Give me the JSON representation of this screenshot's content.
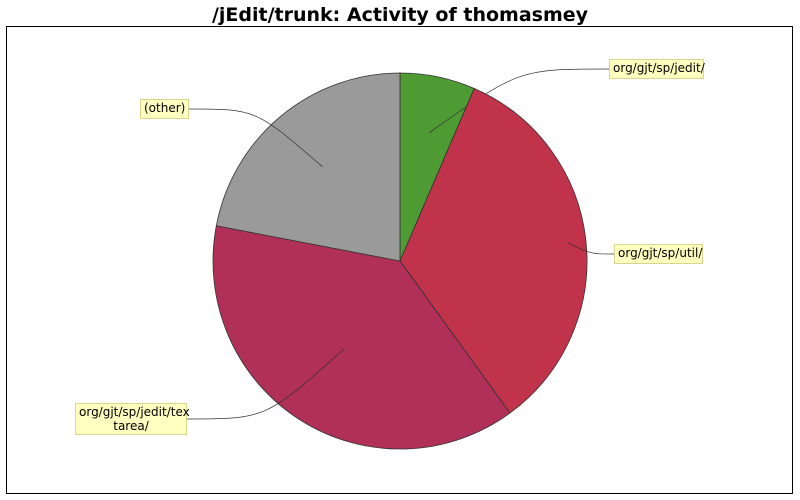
{
  "chart_data": {
    "type": "pie",
    "title": "/jEdit/trunk: Activity of thomasmey",
    "slices": [
      {
        "label": "org/gjt/sp/jedit/",
        "value": 6.5,
        "color": "#4e9a33"
      },
      {
        "label": "org/gjt/sp/util/",
        "value": 33.5,
        "color": "#c0334b"
      },
      {
        "label": "org/gjt/sp/jedit/tex\ntarea/",
        "value": 38.0,
        "color": "#b0305a"
      },
      {
        "label": "(other)",
        "value": 22.0,
        "color": "#9a9a9a"
      }
    ],
    "legend": "none",
    "start": "top",
    "direction": "clockwise"
  }
}
